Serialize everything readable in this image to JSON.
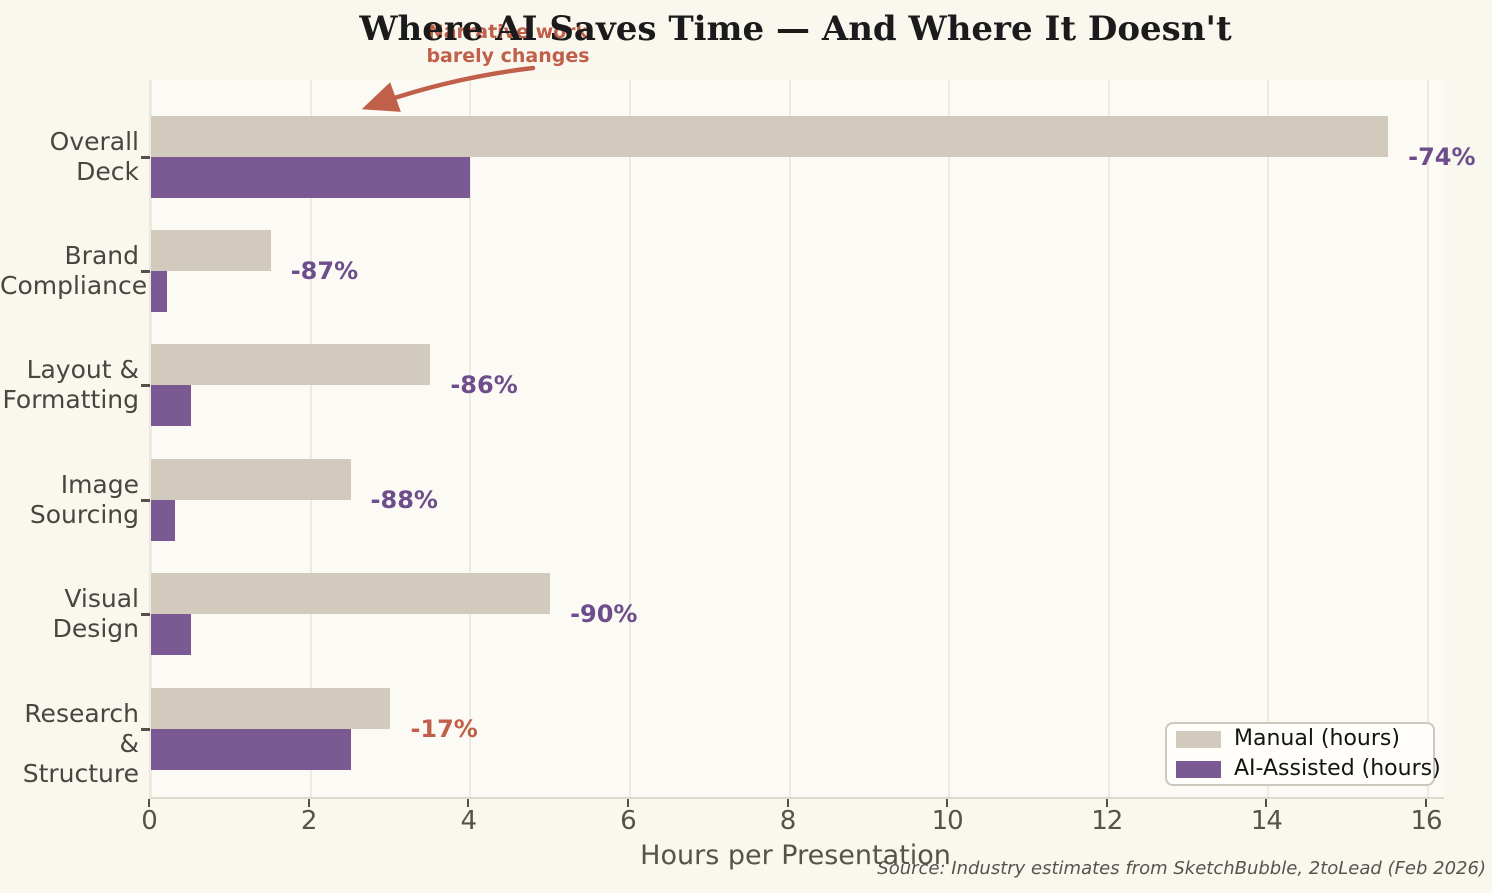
{
  "title": "Where AI Saves Time — And Where It Doesn't",
  "annotation": {
    "line1": "Narrative work",
    "line2": "barely changes"
  },
  "xlabel": "Hours per Presentation",
  "source": "Source: Industry estimates from SketchBubble, 2toLead (Feb 2026)",
  "legend": {
    "items": [
      {
        "label": "Manual (hours)",
        "color": "#d1cabd"
      },
      {
        "label": "AI-Assisted (hours)",
        "color": "#7b5a94"
      }
    ]
  },
  "colors": {
    "background": "#faf7ef",
    "manual_bar": "#d1cabd",
    "ai_bar": "#7b5a94",
    "pct_purple": "#6d4d8c",
    "accent_orange": "#c05f4a",
    "title_text": "#1b1b1b"
  },
  "chart_data": {
    "type": "bar",
    "orientation": "horizontal",
    "title": "Where AI Saves Time — And Where It Doesn't",
    "xlabel": "Hours per Presentation",
    "ylabel": "",
    "categories": [
      "Overall Deck",
      "Brand Compliance",
      "Layout & Formatting",
      "Image Sourcing",
      "Visual Design",
      "Research & Structure"
    ],
    "category_lines": [
      [
        "Overall",
        "Deck"
      ],
      [
        "Brand",
        "Compliance"
      ],
      [
        "Layout &",
        "Formatting"
      ],
      [
        "Image",
        "Sourcing"
      ],
      [
        "Visual",
        "Design"
      ],
      [
        "Research &",
        "Structure"
      ]
    ],
    "series": [
      {
        "name": "Manual (hours)",
        "values": [
          15.5,
          1.5,
          3.5,
          2.5,
          5.0,
          3.0
        ]
      },
      {
        "name": "AI-Assisted (hours)",
        "values": [
          4.0,
          0.2,
          0.5,
          0.3,
          0.5,
          2.5
        ]
      }
    ],
    "pct_labels": [
      {
        "text": "-74%",
        "highlight": false
      },
      {
        "text": "-87%",
        "highlight": false
      },
      {
        "text": "-86%",
        "highlight": false
      },
      {
        "text": "-88%",
        "highlight": false
      },
      {
        "text": "-90%",
        "highlight": false
      },
      {
        "text": "-17%",
        "highlight": true
      }
    ],
    "xlim": [
      0,
      16.2
    ],
    "xticks": [
      0,
      2,
      4,
      6,
      8,
      10,
      12,
      14,
      16
    ],
    "grid": true,
    "legend_position": "lower right"
  }
}
